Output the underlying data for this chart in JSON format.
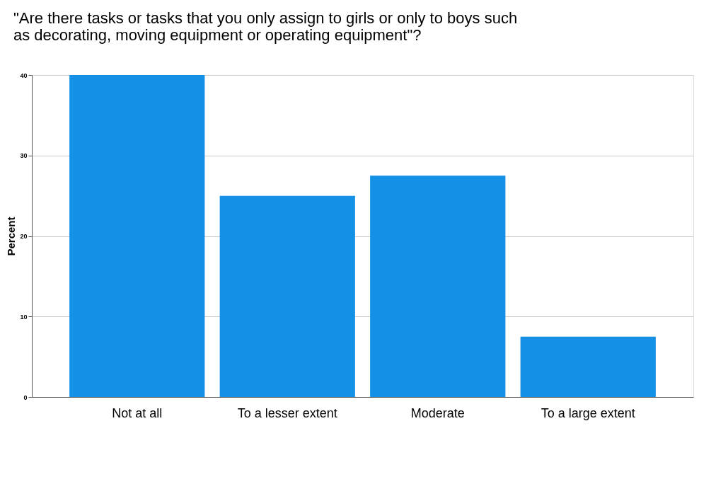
{
  "chart_data": {
    "type": "bar",
    "title": "\"Are there tasks or tasks that you only assign to girls or only to boys such as decorating, moving equipment or operating equipment\"?",
    "ylabel": "Percent",
    "categories": [
      "Not at all",
      "To a lesser extent",
      "Moderate",
      "To a large extent"
    ],
    "values": [
      40,
      25,
      27.5,
      7.5
    ],
    "color": "#1490e6",
    "ylim": [
      0,
      40
    ],
    "yticks": [
      0,
      10,
      20,
      30,
      40
    ],
    "grid": "y"
  }
}
